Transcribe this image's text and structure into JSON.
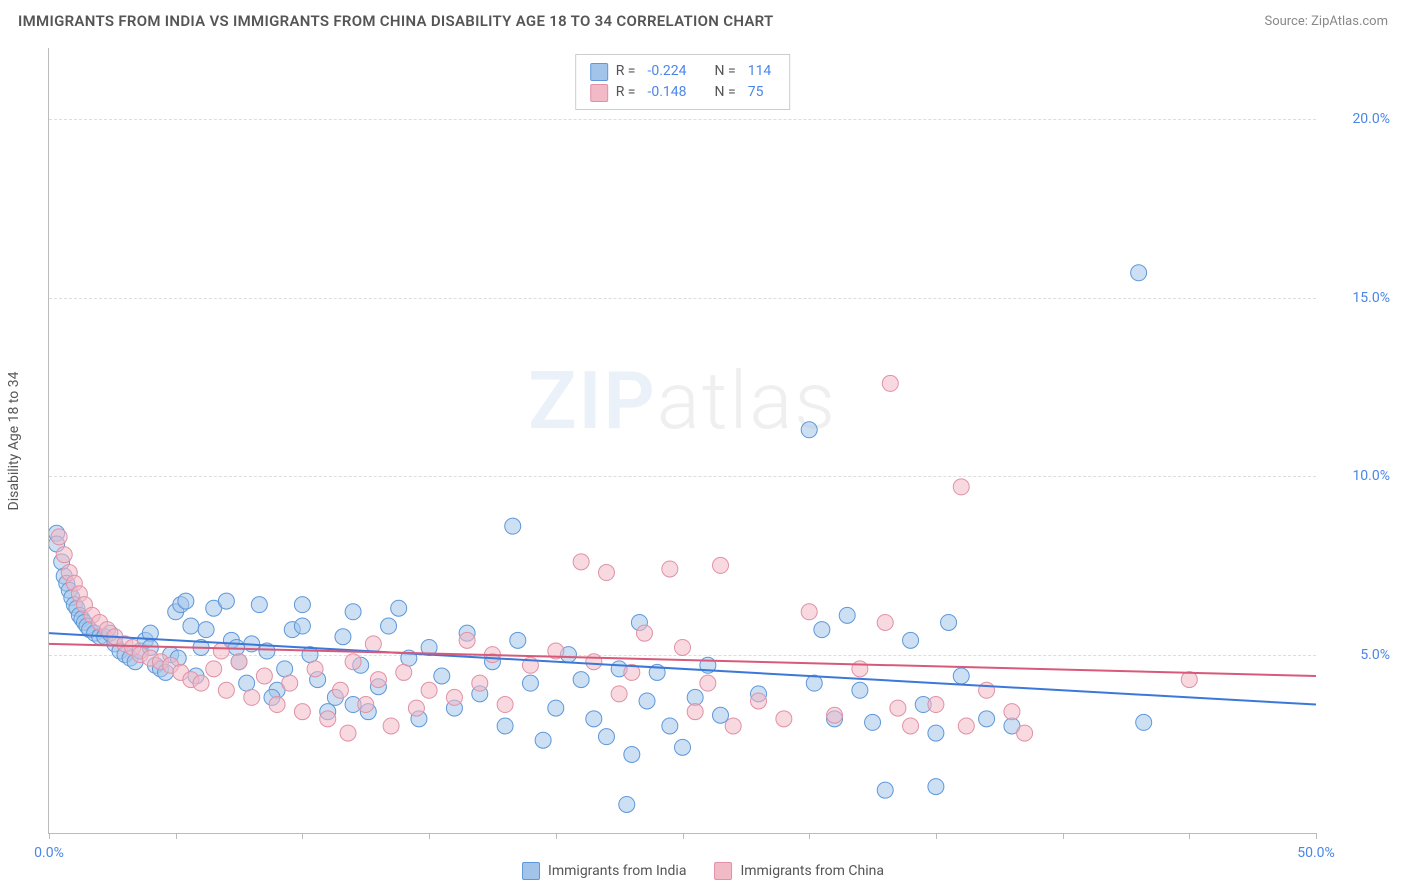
{
  "title": "IMMIGRANTS FROM INDIA VS IMMIGRANTS FROM CHINA DISABILITY AGE 18 TO 34 CORRELATION CHART",
  "source": "Source: ZipAtlas.com",
  "y_axis_label": "Disability Age 18 to 34",
  "watermark": {
    "zip": "ZIP",
    "atlas": "atlas"
  },
  "chart": {
    "type": "scatter",
    "xlim": [
      0,
      50
    ],
    "ylim": [
      0,
      22
    ],
    "x_ticks": [
      0,
      5,
      10,
      15,
      20,
      25,
      30,
      35,
      40,
      45,
      50
    ],
    "x_tick_labels": {
      "0": "0.0%",
      "50": "50.0%"
    },
    "y_ticks": [
      5,
      10,
      15,
      20
    ],
    "y_tick_labels": {
      "5": "5.0%",
      "10": "10.0%",
      "15": "15.0%",
      "20": "20.0%"
    },
    "background_color": "#ffffff",
    "grid_color": "#dddddd",
    "axis_color": "#bbbbbb",
    "marker_radius": 8,
    "marker_opacity": 0.55,
    "line_width": 2
  },
  "series": [
    {
      "id": "india",
      "name": "Immigrants from India",
      "R": "-0.224",
      "N": "114",
      "fill": "#a3c4ea",
      "stroke": "#5e98da",
      "line_color": "#3c78d8",
      "trend": {
        "x1": 0,
        "y1": 5.6,
        "x2": 50,
        "y2": 3.6
      },
      "points": [
        [
          0.3,
          8.4
        ],
        [
          0.3,
          8.1
        ],
        [
          0.5,
          7.6
        ],
        [
          0.6,
          7.2
        ],
        [
          0.7,
          7.0
        ],
        [
          0.8,
          6.8
        ],
        [
          0.9,
          6.6
        ],
        [
          1.0,
          6.4
        ],
        [
          1.1,
          6.3
        ],
        [
          1.2,
          6.1
        ],
        [
          1.3,
          6.0
        ],
        [
          1.4,
          5.9
        ],
        [
          1.5,
          5.8
        ],
        [
          1.6,
          5.7
        ],
        [
          1.8,
          5.6
        ],
        [
          2.0,
          5.5
        ],
        [
          2.2,
          5.5
        ],
        [
          2.4,
          5.6
        ],
        [
          2.6,
          5.3
        ],
        [
          2.8,
          5.1
        ],
        [
          3.0,
          5.0
        ],
        [
          3.2,
          4.9
        ],
        [
          3.4,
          4.8
        ],
        [
          3.6,
          5.1
        ],
        [
          3.8,
          5.4
        ],
        [
          4.0,
          5.6
        ],
        [
          4.2,
          4.7
        ],
        [
          4.4,
          4.6
        ],
        [
          4.6,
          4.5
        ],
        [
          4.8,
          5.0
        ],
        [
          5.0,
          6.2
        ],
        [
          5.2,
          6.4
        ],
        [
          5.4,
          6.5
        ],
        [
          5.6,
          5.8
        ],
        [
          5.8,
          4.4
        ],
        [
          6.0,
          5.2
        ],
        [
          6.5,
          6.3
        ],
        [
          7.0,
          6.5
        ],
        [
          7.2,
          5.4
        ],
        [
          7.5,
          4.8
        ],
        [
          7.8,
          4.2
        ],
        [
          8.0,
          5.3
        ],
        [
          8.3,
          6.4
        ],
        [
          8.6,
          5.1
        ],
        [
          9.0,
          4.0
        ],
        [
          9.3,
          4.6
        ],
        [
          9.6,
          5.7
        ],
        [
          10.0,
          6.4
        ],
        [
          10.3,
          5.0
        ],
        [
          10.6,
          4.3
        ],
        [
          11.0,
          3.4
        ],
        [
          11.3,
          3.8
        ],
        [
          11.6,
          5.5
        ],
        [
          12.0,
          6.2
        ],
        [
          12.3,
          4.7
        ],
        [
          12.6,
          3.4
        ],
        [
          13.0,
          4.1
        ],
        [
          13.4,
          5.8
        ],
        [
          13.8,
          6.3
        ],
        [
          14.2,
          4.9
        ],
        [
          14.6,
          3.2
        ],
        [
          15.0,
          5.2
        ],
        [
          15.5,
          4.4
        ],
        [
          16.0,
          3.5
        ],
        [
          16.5,
          5.6
        ],
        [
          17.0,
          3.9
        ],
        [
          17.5,
          4.8
        ],
        [
          18.0,
          3.0
        ],
        [
          18.3,
          8.6
        ],
        [
          18.5,
          5.4
        ],
        [
          19.0,
          4.2
        ],
        [
          19.5,
          2.6
        ],
        [
          20.0,
          3.5
        ],
        [
          20.5,
          5.0
        ],
        [
          21.0,
          4.3
        ],
        [
          21.5,
          3.2
        ],
        [
          22.0,
          2.7
        ],
        [
          22.5,
          4.6
        ],
        [
          22.8,
          0.8
        ],
        [
          23.0,
          2.2
        ],
        [
          23.3,
          5.9
        ],
        [
          23.6,
          3.7
        ],
        [
          24.0,
          4.5
        ],
        [
          24.5,
          3.0
        ],
        [
          25.0,
          2.4
        ],
        [
          25.5,
          3.8
        ],
        [
          26.0,
          4.7
        ],
        [
          26.5,
          3.3
        ],
        [
          28.0,
          3.9
        ],
        [
          30.0,
          11.3
        ],
        [
          30.2,
          4.2
        ],
        [
          30.5,
          5.7
        ],
        [
          31.0,
          3.2
        ],
        [
          31.5,
          6.1
        ],
        [
          32.0,
          4.0
        ],
        [
          32.5,
          3.1
        ],
        [
          33.0,
          1.2
        ],
        [
          34.0,
          5.4
        ],
        [
          34.5,
          3.6
        ],
        [
          35.0,
          2.8
        ],
        [
          35.0,
          1.3
        ],
        [
          35.5,
          5.9
        ],
        [
          36.0,
          4.4
        ],
        [
          37.0,
          3.2
        ],
        [
          38.0,
          3.0
        ],
        [
          43.0,
          15.7
        ],
        [
          43.2,
          3.1
        ],
        [
          4.0,
          5.2
        ],
        [
          5.1,
          4.9
        ],
        [
          6.2,
          5.7
        ],
        [
          8.8,
          3.8
        ],
        [
          12.0,
          3.6
        ],
        [
          10.0,
          5.8
        ],
        [
          7.4,
          5.2
        ]
      ]
    },
    {
      "id": "china",
      "name": "Immigrants from China",
      "R": "-0.148",
      "N": "75",
      "fill": "#f2b9c6",
      "stroke": "#e091a6",
      "line_color": "#d85a7a",
      "trend": {
        "x1": 0,
        "y1": 5.3,
        "x2": 50,
        "y2": 4.4
      },
      "points": [
        [
          0.4,
          8.3
        ],
        [
          0.6,
          7.8
        ],
        [
          0.8,
          7.3
        ],
        [
          1.0,
          7.0
        ],
        [
          1.2,
          6.7
        ],
        [
          1.4,
          6.4
        ],
        [
          1.7,
          6.1
        ],
        [
          2.0,
          5.9
        ],
        [
          2.3,
          5.7
        ],
        [
          2.6,
          5.5
        ],
        [
          3.0,
          5.3
        ],
        [
          3.3,
          5.2
        ],
        [
          3.6,
          5.0
        ],
        [
          4.0,
          4.9
        ],
        [
          4.4,
          4.8
        ],
        [
          4.8,
          4.7
        ],
        [
          5.2,
          4.5
        ],
        [
          5.6,
          4.3
        ],
        [
          6.0,
          4.2
        ],
        [
          6.5,
          4.6
        ],
        [
          7.0,
          4.0
        ],
        [
          7.5,
          4.8
        ],
        [
          8.0,
          3.8
        ],
        [
          8.5,
          4.4
        ],
        [
          9.0,
          3.6
        ],
        [
          9.5,
          4.2
        ],
        [
          10.0,
          3.4
        ],
        [
          10.5,
          4.6
        ],
        [
          11.0,
          3.2
        ],
        [
          11.5,
          4.0
        ],
        [
          11.8,
          2.8
        ],
        [
          12.0,
          4.8
        ],
        [
          12.5,
          3.6
        ],
        [
          13.0,
          4.3
        ],
        [
          13.5,
          3.0
        ],
        [
          14.0,
          4.5
        ],
        [
          14.5,
          3.5
        ],
        [
          15.0,
          4.0
        ],
        [
          16.0,
          3.8
        ],
        [
          17.0,
          4.2
        ],
        [
          17.5,
          5.0
        ],
        [
          18.0,
          3.6
        ],
        [
          19.0,
          4.7
        ],
        [
          20.0,
          5.1
        ],
        [
          21.0,
          7.6
        ],
        [
          21.5,
          4.8
        ],
        [
          22.0,
          7.3
        ],
        [
          22.5,
          3.9
        ],
        [
          23.0,
          4.5
        ],
        [
          23.5,
          5.6
        ],
        [
          24.5,
          7.4
        ],
        [
          25.0,
          5.2
        ],
        [
          25.5,
          3.4
        ],
        [
          26.0,
          4.2
        ],
        [
          26.5,
          7.5
        ],
        [
          27.0,
          3.0
        ],
        [
          28.0,
          3.7
        ],
        [
          29.0,
          3.2
        ],
        [
          30.0,
          6.2
        ],
        [
          31.0,
          3.3
        ],
        [
          32.0,
          4.6
        ],
        [
          33.0,
          5.9
        ],
        [
          33.2,
          12.6
        ],
        [
          33.5,
          3.5
        ],
        [
          34.0,
          3.0
        ],
        [
          35.0,
          3.6
        ],
        [
          36.0,
          9.7
        ],
        [
          36.2,
          3.0
        ],
        [
          37.0,
          4.0
        ],
        [
          38.0,
          3.4
        ],
        [
          38.5,
          2.8
        ],
        [
          45.0,
          4.3
        ],
        [
          6.8,
          5.1
        ],
        [
          12.8,
          5.3
        ],
        [
          16.5,
          5.4
        ]
      ]
    }
  ],
  "legend_top": {
    "R_label": "R =",
    "N_label": "N ="
  },
  "bottom_legend": true
}
